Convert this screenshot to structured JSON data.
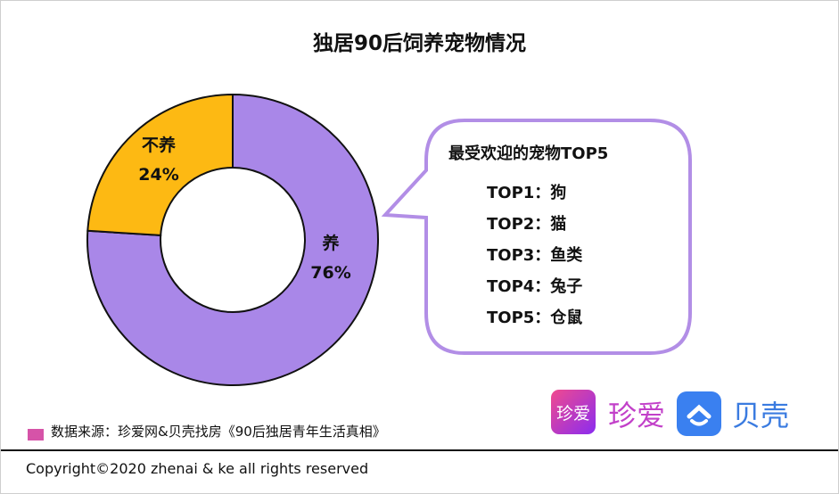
{
  "title": "独居90后饲养宠物情况",
  "chart_data": {
    "type": "pie",
    "donut": true,
    "title": "独居90后饲养宠物情况",
    "slices": [
      {
        "label": "养",
        "value": 76,
        "display": "76%",
        "color": "#a987e8"
      },
      {
        "label": "不养",
        "value": 24,
        "display": "24%",
        "color": "#fdb913"
      }
    ]
  },
  "bubble": {
    "heading": "最受欢迎的宠物TOP5",
    "items": [
      "TOP1：狗",
      "TOP2：猫",
      "TOP3：鱼类",
      "TOP4：兔子",
      "TOP5：仓鼠"
    ],
    "border_color": "#b28ee6"
  },
  "source": "数据来源：珍爱网&贝壳找房《90后独居青年生活真相》",
  "logos": {
    "zhenai_icon": "珍爱",
    "zhenai": "珍爱",
    "beike": "贝壳"
  },
  "copyright": "Copyright©2020 zhenai & ke all rights reserved"
}
